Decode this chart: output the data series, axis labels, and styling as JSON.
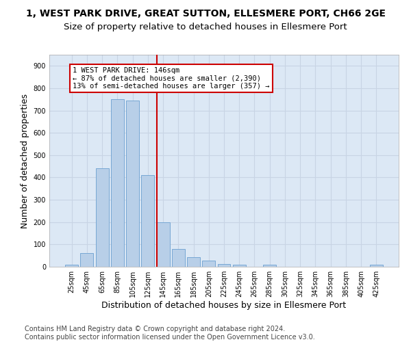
{
  "title": "1, WEST PARK DRIVE, GREAT SUTTON, ELLESMERE PORT, CH66 2GE",
  "subtitle": "Size of property relative to detached houses in Ellesmere Port",
  "xlabel": "Distribution of detached houses by size in Ellesmere Port",
  "ylabel": "Number of detached properties",
  "categories": [
    "25sqm",
    "45sqm",
    "65sqm",
    "85sqm",
    "105sqm",
    "125sqm",
    "145sqm",
    "165sqm",
    "185sqm",
    "205sqm",
    "225sqm",
    "245sqm",
    "265sqm",
    "285sqm",
    "305sqm",
    "325sqm",
    "345sqm",
    "365sqm",
    "385sqm",
    "405sqm",
    "425sqm"
  ],
  "values": [
    10,
    60,
    440,
    750,
    745,
    410,
    200,
    80,
    42,
    28,
    12,
    10,
    0,
    8,
    0,
    0,
    0,
    0,
    0,
    0,
    8
  ],
  "bar_color": "#b8cfe8",
  "bar_edge_color": "#6a9fd0",
  "grid_color": "#c8d4e4",
  "background_color": "#dce8f5",
  "vline_color": "#cc0000",
  "annotation_line1": "1 WEST PARK DRIVE: 146sqm",
  "annotation_line2": "← 87% of detached houses are smaller (2,390)",
  "annotation_line3": "13% of semi-detached houses are larger (357) →",
  "ylim": [
    0,
    950
  ],
  "yticks": [
    0,
    100,
    200,
    300,
    400,
    500,
    600,
    700,
    800,
    900
  ],
  "footer_line1": "Contains HM Land Registry data © Crown copyright and database right 2024.",
  "footer_line2": "Contains public sector information licensed under the Open Government Licence v3.0.",
  "title_fontsize": 10,
  "subtitle_fontsize": 9.5,
  "axis_label_fontsize": 9,
  "tick_fontsize": 7,
  "annotation_fontsize": 7.5,
  "footer_fontsize": 7
}
